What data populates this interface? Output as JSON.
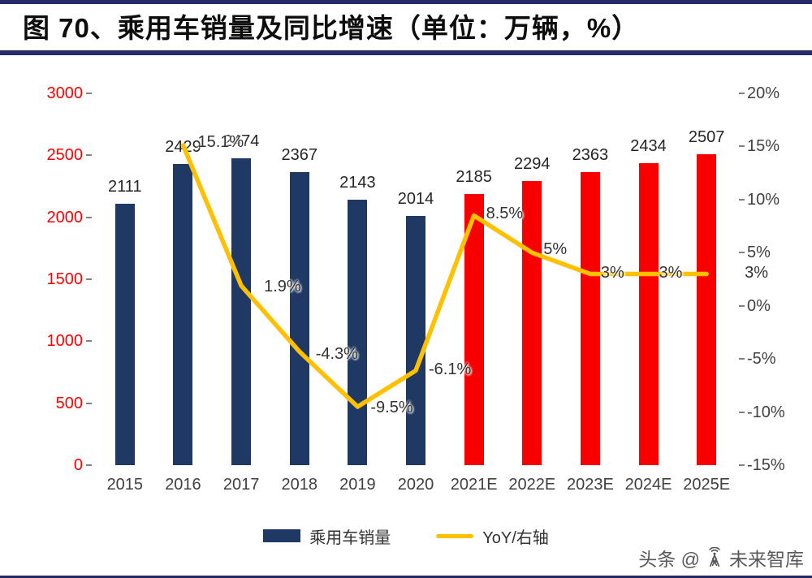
{
  "title": "图 70、乘用车销量及同比增速（单位：万辆，%）",
  "watermark": {
    "prefix": "头条 @",
    "brand": "未来智库",
    "icon": "signal-tower-icon"
  },
  "colors": {
    "rule_navy": "#252B6A",
    "bar_actual_navy": "#1F3864",
    "bar_forecast_red": "#F80000",
    "line_gold": "#FFC000",
    "left_axis_red": "#FF0000",
    "axis_text_gray": "#404040"
  },
  "chart_data": {
    "type": "bar+line",
    "title": "图 70、乘用车销量及同比增速（单位：万辆，%）",
    "categories": [
      "2015",
      "2016",
      "2017",
      "2018",
      "2019",
      "2020",
      "2021E",
      "2022E",
      "2023E",
      "2024E",
      "2025E"
    ],
    "series": [
      {
        "name": "乘用车销量",
        "type": "bar",
        "axis": "left",
        "values": [
          2111,
          2429,
          2474,
          2367,
          2143,
          2014,
          2185,
          2294,
          2363,
          2434,
          2507
        ],
        "color_actual": "#1F3864",
        "color_forecast": "#F80000",
        "forecast_start_index": 6
      },
      {
        "name": "YoY/右轴",
        "type": "line",
        "axis": "right",
        "color": "#FFC000",
        "values": [
          null,
          15.1,
          1.9,
          -4.3,
          -9.5,
          -6.1,
          8.5,
          5,
          3,
          3,
          3
        ],
        "point_labels": [
          "",
          "15.1%",
          "1.9%",
          "-4.3%",
          "-9.5%",
          "-6.1%",
          "8.5%",
          "5%",
          "3%",
          "3%",
          "3%"
        ]
      }
    ],
    "left_axis": {
      "min": 0,
      "max": 3000,
      "step": 500,
      "tick_labels": [
        "3000",
        "2500",
        "2000",
        "1500",
        "1000",
        "500",
        "0"
      ],
      "color": "#FF0000"
    },
    "right_axis": {
      "min": -15,
      "max": 20,
      "step": 5,
      "tick_labels": [
        "20%",
        "15%",
        "10%",
        "5%",
        "0%",
        "-5%",
        "-10%",
        "-15%"
      ],
      "color": "#404040"
    },
    "grid": false,
    "legend_position": "bottom"
  }
}
